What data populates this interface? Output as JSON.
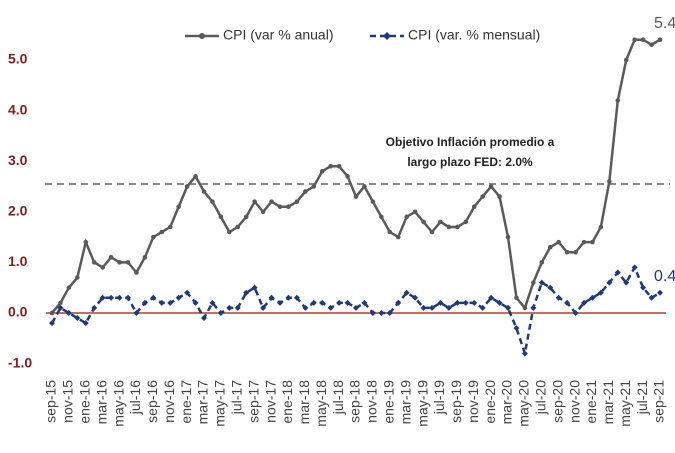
{
  "chart_data": {
    "type": "line",
    "categories": [
      "sep-15",
      null,
      "nov-15",
      null,
      "ene-16",
      null,
      "mar-16",
      null,
      "may-16",
      null,
      "jul-16",
      null,
      "sep-16",
      null,
      "nov-16",
      null,
      "ene-17",
      null,
      "mar-17",
      null,
      "may-17",
      null,
      "jul-17",
      null,
      "sep-17",
      null,
      "nov-17",
      null,
      "ene-18",
      null,
      "mar-18",
      null,
      "may-18",
      null,
      "jul-18",
      null,
      "sep-18",
      null,
      "nov-18",
      null,
      "ene-19",
      null,
      "mar-19",
      null,
      "may-19",
      null,
      "jul-19",
      null,
      "sep-19",
      null,
      "nov-19",
      null,
      "ene-20",
      null,
      "mar-20",
      null,
      "may-20",
      null,
      "jul-20",
      null,
      "sep-20",
      null,
      "nov-20",
      null,
      "ene-21",
      null,
      "mar-21",
      null,
      "may-21",
      null,
      "jul-21",
      null,
      "sep-21"
    ],
    "series": [
      {
        "name": "CPI (var % anual)",
        "color": "#5a5a5a",
        "dash": false,
        "marker": "circle",
        "label_last": true,
        "values": [
          0.0,
          0.2,
          0.5,
          0.7,
          1.4,
          1.0,
          0.9,
          1.1,
          1.0,
          1.0,
          0.8,
          1.1,
          1.5,
          1.6,
          1.7,
          2.1,
          2.5,
          2.7,
          2.4,
          2.2,
          1.9,
          1.6,
          1.7,
          1.9,
          2.2,
          2.0,
          2.2,
          2.1,
          2.1,
          2.2,
          2.4,
          2.5,
          2.8,
          2.9,
          2.9,
          2.7,
          2.3,
          2.5,
          2.2,
          1.9,
          1.6,
          1.5,
          1.9,
          2.0,
          1.8,
          1.6,
          1.8,
          1.7,
          1.7,
          1.8,
          2.1,
          2.3,
          2.5,
          2.3,
          1.5,
          0.3,
          0.1,
          0.6,
          1.0,
          1.3,
          1.4,
          1.2,
          1.2,
          1.4,
          1.4,
          1.7,
          2.6,
          4.2,
          5.0,
          5.4,
          5.4,
          5.3,
          5.4
        ]
      },
      {
        "name": "CPI (var. % mensual)",
        "color": "#1f3a78",
        "dash": true,
        "marker": "diamond",
        "label_last": true,
        "values": [
          -0.2,
          0.1,
          0.0,
          -0.1,
          -0.2,
          0.1,
          0.3,
          0.3,
          0.3,
          0.3,
          0.0,
          0.2,
          0.3,
          0.2,
          0.2,
          0.3,
          0.4,
          0.2,
          -0.1,
          0.2,
          0.0,
          0.1,
          0.1,
          0.4,
          0.5,
          0.1,
          0.3,
          0.2,
          0.3,
          0.3,
          0.1,
          0.2,
          0.2,
          0.1,
          0.2,
          0.2,
          0.1,
          0.2,
          0.0,
          0.0,
          0.0,
          0.2,
          0.4,
          0.3,
          0.1,
          0.1,
          0.2,
          0.1,
          0.2,
          0.2,
          0.2,
          0.1,
          0.3,
          0.2,
          0.1,
          -0.3,
          -0.8,
          0.1,
          0.6,
          0.5,
          0.3,
          0.2,
          0.0,
          0.2,
          0.3,
          0.4,
          0.6,
          0.8,
          0.6,
          0.9,
          0.5,
          0.3,
          0.4
        ]
      }
    ],
    "ylim": [
      -1.2,
      5.6
    ],
    "yticks": [
      {
        "value": -1,
        "label": "-1.0"
      },
      {
        "value": 0,
        "label": "0.0"
      },
      {
        "value": 1,
        "label": "1.0"
      },
      {
        "value": 2,
        "label": "2.0"
      },
      {
        "value": 3,
        "label": "3.0"
      },
      {
        "value": 4,
        "label": "4.0"
      },
      {
        "value": 5,
        "label": "5.0"
      }
    ],
    "zero_line_color": "#c0392b",
    "reference_line": {
      "value": 2.55,
      "color": "#888888"
    },
    "annotation": [
      "Objetivo Inflación promedio a",
      "largo plazo FED: 2.0%"
    ],
    "legend": "top"
  }
}
